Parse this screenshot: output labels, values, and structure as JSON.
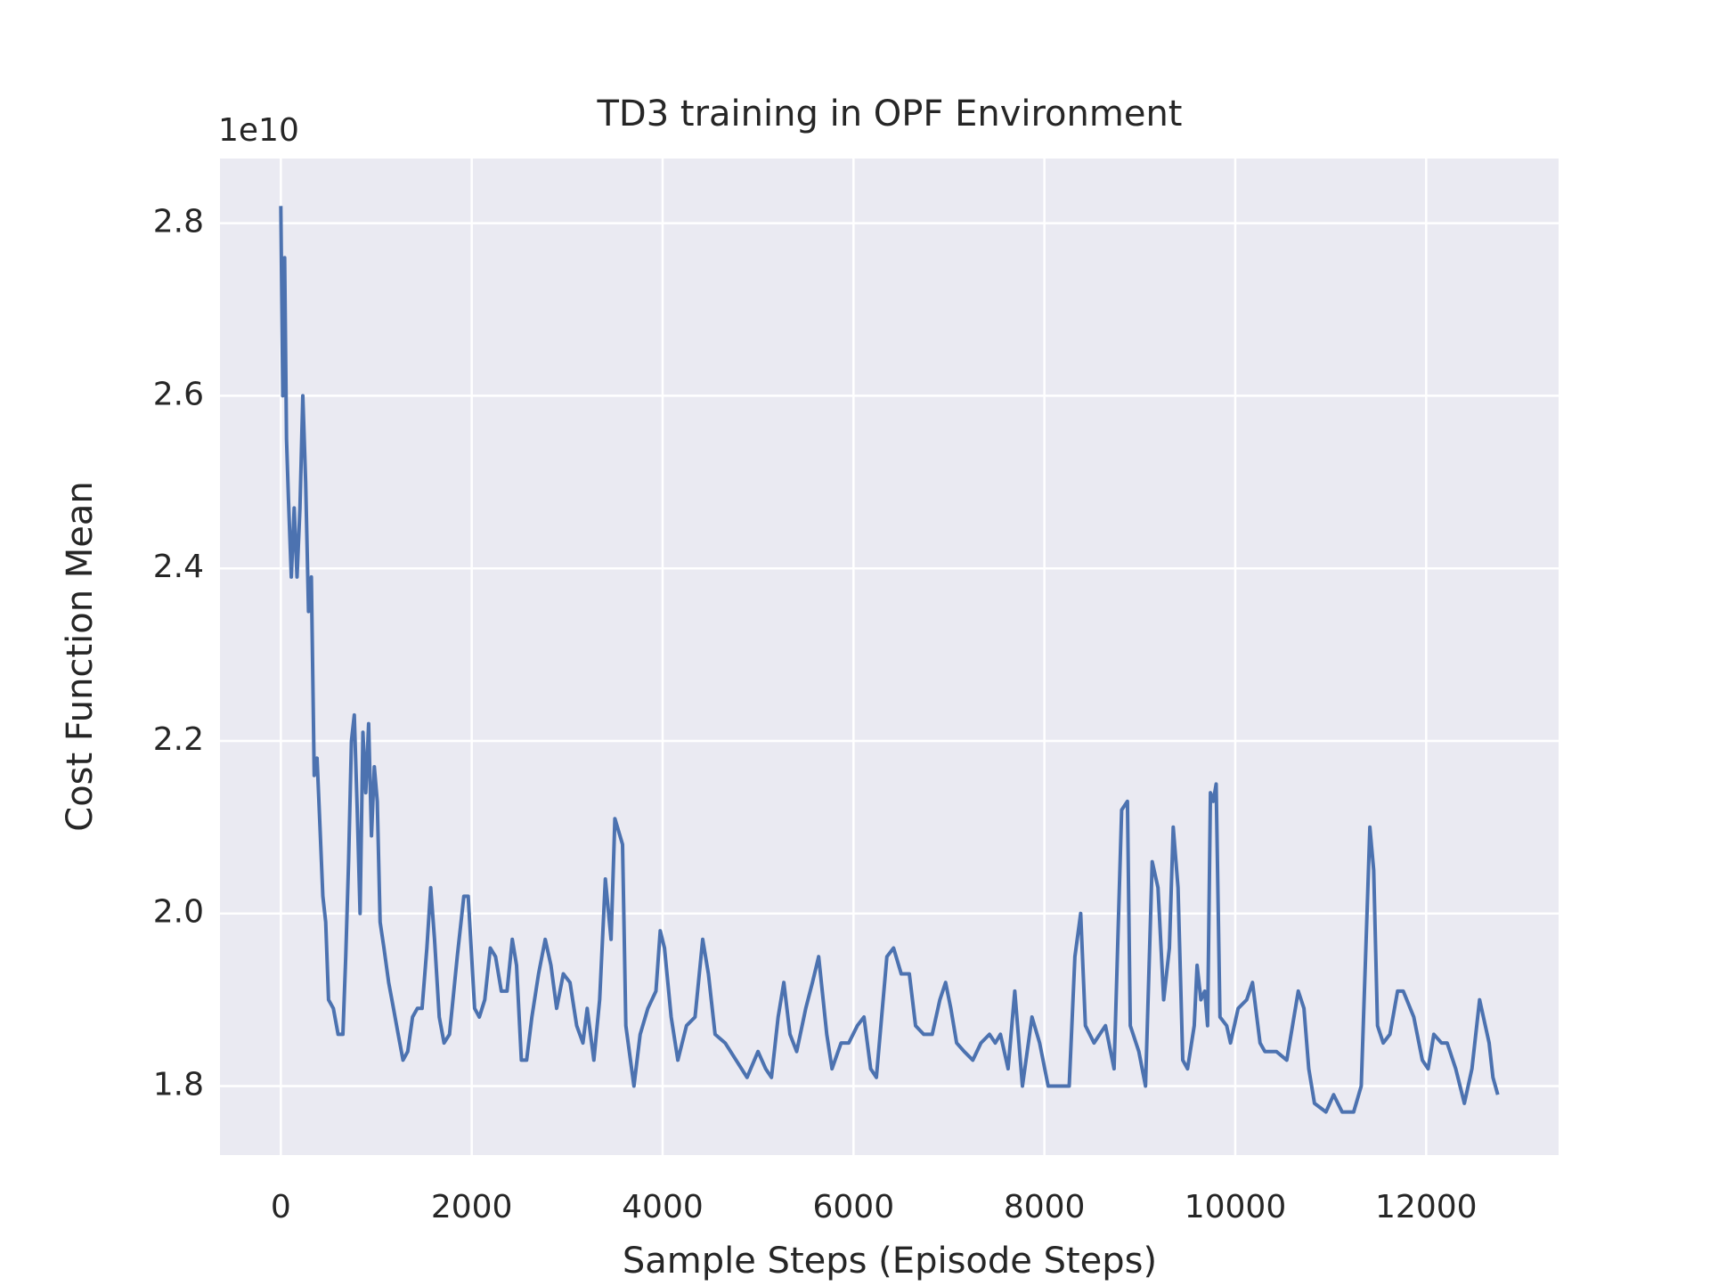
{
  "chart_data": {
    "type": "line",
    "title": "TD3 training in OPF Environment",
    "x_label": "Sample Steps (Episode Steps)",
    "y_label": "Cost Function Mean",
    "y_offset_label": "1e10",
    "background": "#eaeaf2",
    "grid": true,
    "xlim": [
      -637.5,
      13387.5
    ],
    "ylim": [
      1.72,
      2.875
    ],
    "xticks": [
      0,
      2000,
      4000,
      6000,
      8000,
      10000,
      12000
    ],
    "yticks": [
      {
        "value": 1.8,
        "label": "1.8"
      },
      {
        "value": 2,
        "label": "2.0"
      },
      {
        "value": 2.2,
        "label": "2.2"
      },
      {
        "value": 2.4,
        "label": "2.4"
      },
      {
        "value": 2.6,
        "label": "2.6"
      },
      {
        "value": 2.8,
        "label": "2.8"
      }
    ],
    "series": [
      {
        "color": "#4c72b0",
        "x": [
          0,
          20,
          40,
          60,
          80,
          110,
          140,
          170,
          200,
          230,
          260,
          290,
          320,
          350,
          380,
          410,
          440,
          470,
          500,
          550,
          600,
          650,
          680,
          710,
          740,
          770,
          800,
          830,
          860,
          890,
          920,
          950,
          980,
          1010,
          1040,
          1080,
          1130,
          1180,
          1230,
          1280,
          1330,
          1380,
          1430,
          1480,
          1530,
          1570,
          1610,
          1660,
          1710,
          1767,
          1848,
          1917,
          1963,
          2030,
          2080,
          2137,
          2195,
          2250,
          2310,
          2370,
          2425,
          2470,
          2520,
          2575,
          2630,
          2700,
          2770,
          2830,
          2890,
          2960,
          3030,
          3100,
          3165,
          3210,
          3280,
          3340,
          3400,
          3460,
          3500,
          3580,
          3615,
          3700,
          3765,
          3845,
          3930,
          3975,
          4020,
          4090,
          4160,
          4250,
          4340,
          4420,
          4480,
          4550,
          4655,
          4770,
          4885,
          5000,
          5080,
          5140,
          5210,
          5270,
          5335,
          5405,
          5500,
          5570,
          5635,
          5720,
          5775,
          5870,
          5950,
          6040,
          6110,
          6180,
          6240,
          6295,
          6350,
          6420,
          6500,
          6585,
          6650,
          6735,
          6825,
          6905,
          6965,
          7020,
          7080,
          7160,
          7250,
          7335,
          7425,
          7485,
          7540,
          7620,
          7690,
          7770,
          7870,
          7950,
          8040,
          8180,
          8260,
          8320,
          8380,
          8430,
          8520,
          8640,
          8730,
          8810,
          8870,
          8900,
          8990,
          9060,
          9130,
          9190,
          9250,
          9310,
          9350,
          9400,
          9450,
          9500,
          9570,
          9600,
          9640,
          9680,
          9710,
          9740,
          9770,
          9800,
          9840,
          9910,
          9950,
          10030,
          10120,
          10180,
          10260,
          10310,
          10430,
          10540,
          10660,
          10720,
          10770,
          10830,
          10950,
          11030,
          11120,
          11240,
          11320,
          11380,
          11410,
          11450,
          11490,
          11550,
          11620,
          11700,
          11760,
          11870,
          11960,
          12020,
          12080,
          12160,
          12220,
          12310,
          12400,
          12480,
          12560,
          12660,
          12700,
          12750
        ],
        "values": [
          2.82,
          2.6,
          2.76,
          2.55,
          2.48,
          2.39,
          2.47,
          2.39,
          2.47,
          2.6,
          2.5,
          2.35,
          2.39,
          2.16,
          2.18,
          2.1,
          2.02,
          1.99,
          1.9,
          1.89,
          1.86,
          1.86,
          1.95,
          2.06,
          2.2,
          2.23,
          2.12,
          2.0,
          2.21,
          2.14,
          2.22,
          2.09,
          2.17,
          2.13,
          1.99,
          1.96,
          1.92,
          1.89,
          1.86,
          1.83,
          1.84,
          1.88,
          1.89,
          1.89,
          1.96,
          2.03,
          1.97,
          1.88,
          1.85,
          1.86,
          1.95,
          2.02,
          2.02,
          1.89,
          1.88,
          1.9,
          1.96,
          1.95,
          1.91,
          1.91,
          1.97,
          1.94,
          1.83,
          1.83,
          1.88,
          1.93,
          1.97,
          1.94,
          1.89,
          1.93,
          1.92,
          1.87,
          1.85,
          1.89,
          1.83,
          1.9,
          2.04,
          1.97,
          2.11,
          2.08,
          1.87,
          1.8,
          1.86,
          1.89,
          1.91,
          1.98,
          1.96,
          1.88,
          1.83,
          1.87,
          1.88,
          1.97,
          1.93,
          1.86,
          1.85,
          1.83,
          1.81,
          1.84,
          1.82,
          1.81,
          1.88,
          1.92,
          1.86,
          1.84,
          1.89,
          1.92,
          1.95,
          1.86,
          1.82,
          1.85,
          1.85,
          1.87,
          1.88,
          1.82,
          1.81,
          1.88,
          1.95,
          1.96,
          1.93,
          1.93,
          1.87,
          1.86,
          1.86,
          1.9,
          1.92,
          1.89,
          1.85,
          1.84,
          1.83,
          1.85,
          1.86,
          1.85,
          1.86,
          1.82,
          1.91,
          1.8,
          1.88,
          1.85,
          1.8,
          1.8,
          1.8,
          1.95,
          2.0,
          1.87,
          1.85,
          1.87,
          1.82,
          2.12,
          2.13,
          1.87,
          1.84,
          1.8,
          2.06,
          2.03,
          1.9,
          1.96,
          2.1,
          2.03,
          1.83,
          1.82,
          1.87,
          1.94,
          1.9,
          1.91,
          1.87,
          2.14,
          2.13,
          2.15,
          1.88,
          1.87,
          1.85,
          1.89,
          1.9,
          1.92,
          1.85,
          1.84,
          1.84,
          1.83,
          1.91,
          1.89,
          1.82,
          1.78,
          1.77,
          1.79,
          1.77,
          1.77,
          1.8,
          2.0,
          2.1,
          2.05,
          1.87,
          1.85,
          1.86,
          1.91,
          1.91,
          1.88,
          1.83,
          1.82,
          1.86,
          1.85,
          1.85,
          1.82,
          1.78,
          1.82,
          1.9,
          1.85,
          1.81,
          1.79
        ]
      }
    ]
  }
}
